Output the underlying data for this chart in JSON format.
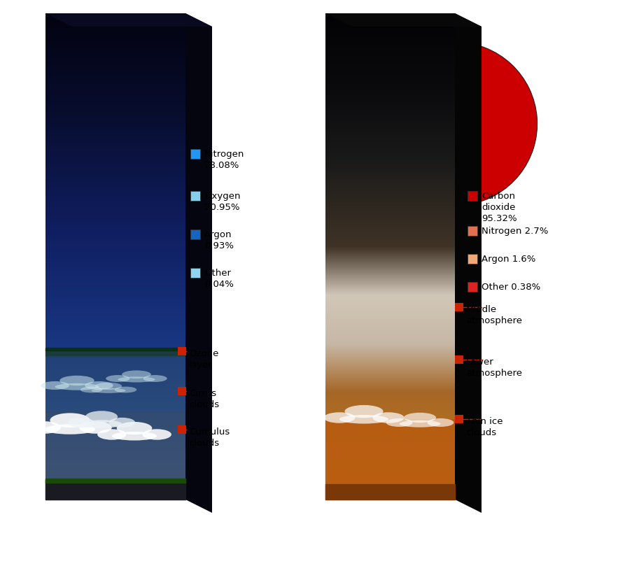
{
  "earth_pie": {
    "values": [
      78.08,
      20.95,
      0.93,
      0.04
    ],
    "colors": [
      "#2196F3",
      "#87CEEB",
      "#1565C0",
      "#90D4F0"
    ],
    "startangle": 90
  },
  "mars_pie": {
    "values": [
      95.32,
      2.7,
      1.6,
      0.38
    ],
    "colors": [
      "#CC0000",
      "#E07050",
      "#F0A878",
      "#DD2222"
    ],
    "startangle": 90
  },
  "earth_legend": [
    {
      "color": "#2196F3",
      "text": "Nitrogen\n78.08%"
    },
    {
      "color": "#87CEEB",
      "text": "Oxygen\n20.95%"
    },
    {
      "color": "#1565C0",
      "text": "Argon\n0.93%"
    },
    {
      "color": "#90D4F0",
      "text": "Other\n0.04%"
    }
  ],
  "mars_legend": [
    {
      "color": "#CC0000",
      "text": "Carbon\ndioxide\n95.32%"
    },
    {
      "color": "#E07050",
      "text": "Nitrogen 2.7%"
    },
    {
      "color": "#F0A878",
      "text": "Argon 1.6%"
    },
    {
      "color": "#DD2222",
      "text": "Other 0.38%"
    }
  ],
  "ann_color": "#CC2200",
  "bg_color": "#ffffff",
  "EL": 55,
  "ER": 255,
  "EB": 95,
  "ET": 790,
  "ED": 38,
  "ML": 455,
  "MR": 640,
  "MB": 95,
  "MT": 790,
  "MD": 38
}
